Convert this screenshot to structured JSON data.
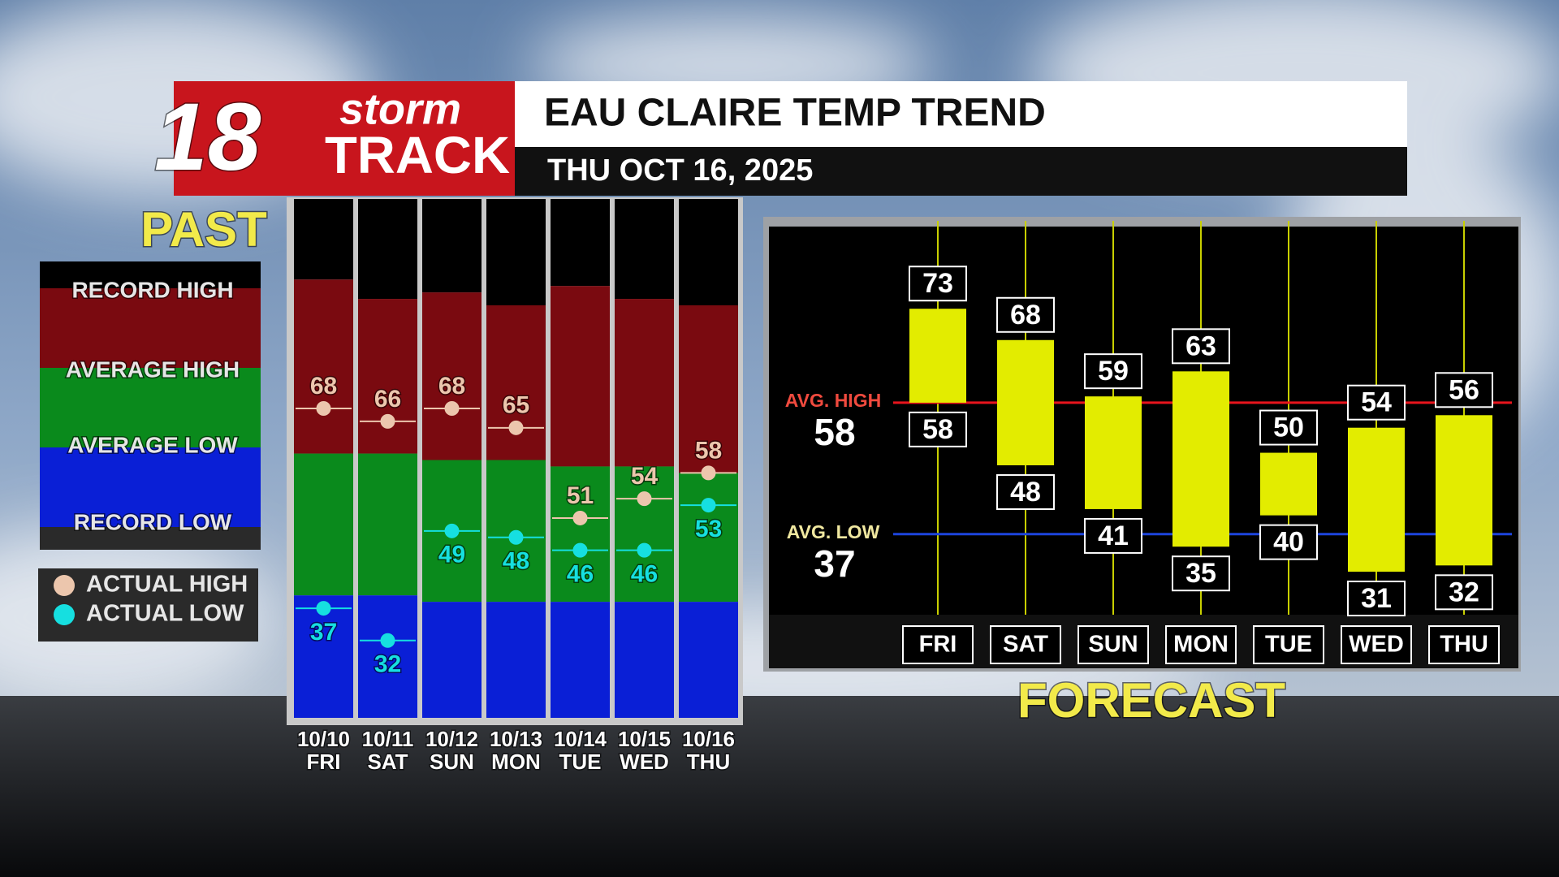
{
  "header": {
    "logo_number": "18",
    "logo_top": "storm",
    "logo_bottom": "TRACK",
    "title": "EAU CLAIRE TEMP TREND",
    "subtitle": "THU OCT 16, 2025",
    "past_label": "PAST",
    "forecast_label": "FORECAST"
  },
  "chart_data": [
    {
      "type": "range",
      "categories": [
        "10/10",
        "10/11",
        "10/12",
        "10/13",
        "10/14",
        "10/15",
        "10/16"
      ],
      "weekdays": [
        "FRI",
        "SAT",
        "SUN",
        "MON",
        "TUE",
        "WED",
        "THU"
      ],
      "ylim": [
        20,
        100
      ],
      "band_labels": [
        "RECORD HIGH",
        "AVERAGE HIGH",
        "AVERAGE LOW",
        "RECORD LOW"
      ],
      "band_colors": [
        "#000000",
        "#7a0a10",
        "#0a8a1c",
        "#0a1fd6"
      ],
      "band_edges": [
        [
          88,
          85,
          86,
          84,
          87,
          85,
          84
        ],
        [
          61,
          61,
          60,
          60,
          59,
          59,
          58
        ],
        [
          39,
          39,
          38,
          38,
          38,
          38,
          38
        ]
      ],
      "series": [
        {
          "name": "ACTUAL HIGH",
          "color": "#ecc6ad",
          "values": [
            68,
            66,
            68,
            65,
            51,
            54,
            58
          ]
        },
        {
          "name": "ACTUAL LOW",
          "color": "#16dfe0",
          "values": [
            37,
            32,
            49,
            48,
            46,
            46,
            53
          ]
        }
      ]
    },
    {
      "type": "floating-bar",
      "categories": [
        "FRI",
        "SAT",
        "SUN",
        "MON",
        "TUE",
        "WED",
        "THU"
      ],
      "ylim": [
        24,
        86
      ],
      "bar_color": "#e3ec00",
      "highs": [
        73,
        68,
        59,
        63,
        50,
        54,
        56
      ],
      "lows": [
        58,
        48,
        41,
        35,
        40,
        31,
        32
      ],
      "avg_high_label": "AVG. HIGH",
      "avg_high": 58,
      "avg_high_color": "#e8141c",
      "avg_low_label": "AVG. LOW",
      "avg_low": 37,
      "avg_low_color": "#1c44dc"
    }
  ]
}
